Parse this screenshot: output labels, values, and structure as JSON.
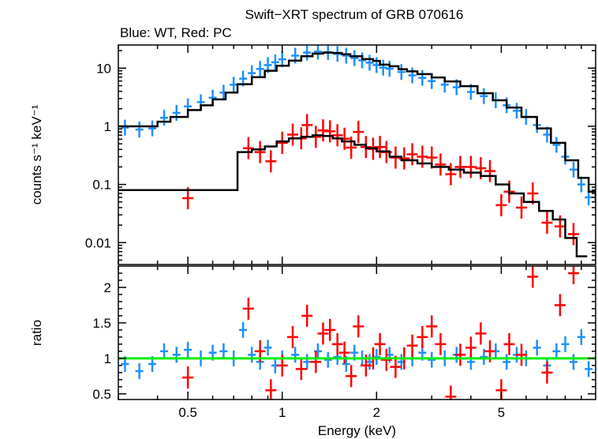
{
  "chart_data": [
    {
      "type": "scatter",
      "panel": "spectrum",
      "title": "Swift−XRT spectrum of GRB 070616",
      "subtitle": "Blue: WT, Red: PC",
      "xlabel": "",
      "ylabel": "counts s⁻¹ keV⁻¹",
      "xscale": "log",
      "yscale": "log",
      "xlim": [
        0.3,
        10
      ],
      "ylim": [
        0.0042,
        25
      ],
      "x_ticks": [
        0.5,
        1,
        2,
        5
      ],
      "y_ticks": [
        0.01,
        0.1,
        1,
        10
      ],
      "y_tick_labels": [
        "0.01",
        "0.1",
        "1",
        "10"
      ],
      "grid": false,
      "legend": "none",
      "series": [
        {
          "color": "#1e90ff",
          "style": "errorbar",
          "x": [
            0.315,
            0.35,
            0.385,
            0.42,
            0.46,
            0.5,
            0.55,
            0.6,
            0.65,
            0.7,
            0.75,
            0.8,
            0.85,
            0.9,
            0.95,
            1.0,
            1.1,
            1.2,
            1.3,
            1.4,
            1.5,
            1.6,
            1.7,
            1.8,
            1.9,
            2.0,
            2.1,
            2.2,
            2.4,
            2.6,
            2.8,
            3.0,
            3.3,
            3.6,
            4.0,
            4.4,
            4.8,
            5.2,
            5.6,
            6.0,
            6.5,
            7.0,
            7.5,
            8.0,
            8.5,
            9.0,
            9.5
          ],
          "y": [
            0.95,
            0.88,
            0.92,
            1.4,
            1.7,
            2.2,
            2.6,
            3.1,
            3.8,
            5.2,
            6.6,
            8.2,
            9.7,
            11.3,
            12.6,
            14.2,
            16.4,
            18.5,
            19.2,
            18.9,
            17.6,
            16.4,
            14.9,
            13.6,
            12.4,
            11.3,
            10.2,
            9.8,
            8.6,
            7.5,
            6.8,
            6.0,
            5.2,
            4.7,
            3.9,
            3.3,
            2.8,
            2.3,
            1.85,
            1.45,
            1.05,
            0.72,
            0.48,
            0.3,
            0.18,
            0.1,
            0.06
          ]
        },
        {
          "color": "#ff0000",
          "style": "errorbar",
          "x": [
            0.5,
            0.78,
            0.85,
            0.92,
            1.0,
            1.08,
            1.15,
            1.2,
            1.28,
            1.35,
            1.42,
            1.5,
            1.58,
            1.66,
            1.75,
            1.85,
            1.95,
            2.05,
            2.15,
            2.3,
            2.45,
            2.6,
            2.8,
            3.0,
            3.2,
            3.45,
            3.7,
            4.0,
            4.3,
            4.6,
            5.0,
            5.3,
            5.8,
            6.3,
            7.0,
            7.7,
            8.5
          ],
          "y": [
            0.058,
            0.42,
            0.36,
            0.25,
            0.52,
            0.72,
            0.62,
            1.05,
            0.66,
            0.85,
            0.82,
            0.7,
            0.61,
            0.43,
            0.8,
            0.44,
            0.41,
            0.44,
            0.36,
            0.29,
            0.28,
            0.33,
            0.3,
            0.29,
            0.22,
            0.15,
            0.2,
            0.2,
            0.19,
            0.17,
            0.044,
            0.075,
            0.04,
            0.07,
            0.022,
            0.019,
            0.014
          ]
        },
        {
          "color": "#000000",
          "style": "step",
          "x": [
            0.3,
            0.36,
            0.4,
            0.44,
            0.5,
            0.55,
            0.6,
            0.66,
            0.72,
            0.8,
            0.88,
            0.96,
            1.05,
            1.15,
            1.25,
            1.35,
            1.45,
            1.55,
            1.65,
            1.8,
            1.95,
            2.05,
            2.2,
            2.35,
            2.5,
            2.7,
            3.0,
            3.3,
            3.7,
            4.2,
            4.7,
            5.2,
            5.8,
            6.5,
            7.2,
            8.0,
            8.8,
            9.5,
            10.0
          ],
          "y": [
            1.0,
            1.0,
            1.2,
            1.45,
            1.9,
            2.3,
            2.9,
            3.8,
            5.3,
            7.0,
            9.0,
            11.0,
            13.5,
            16.0,
            17.8,
            18.5,
            18.2,
            17.3,
            16.0,
            14.3,
            13.3,
            11.5,
            10.8,
            9.6,
            8.8,
            7.9,
            6.9,
            5.9,
            4.9,
            3.7,
            2.8,
            2.1,
            1.45,
            0.92,
            0.52,
            0.26,
            0.13,
            0.075,
            0.05
          ]
        },
        {
          "color": "#000000",
          "style": "step",
          "x": [
            0.3,
            0.72,
            0.8,
            0.88,
            0.96,
            1.05,
            1.15,
            1.25,
            1.35,
            1.45,
            1.55,
            1.7,
            1.85,
            2.0,
            2.2,
            2.4,
            2.7,
            3.0,
            3.4,
            3.8,
            4.3,
            4.8,
            5.3,
            5.9,
            6.6,
            7.3,
            8.0,
            8.7,
            9.4
          ],
          "y": [
            0.08,
            0.36,
            0.4,
            0.45,
            0.55,
            0.62,
            0.66,
            0.7,
            0.68,
            0.62,
            0.55,
            0.48,
            0.42,
            0.37,
            0.3,
            0.26,
            0.23,
            0.2,
            0.18,
            0.16,
            0.14,
            0.1,
            0.07,
            0.05,
            0.035,
            0.025,
            0.012,
            0.0058,
            0.0058
          ]
        }
      ]
    },
    {
      "type": "scatter",
      "panel": "ratio",
      "title": "",
      "xlabel": "Energy (keV)",
      "ylabel": "ratio",
      "xscale": "log",
      "yscale": "linear",
      "xlim": [
        0.3,
        10
      ],
      "ylim": [
        0.42,
        2.3
      ],
      "x_ticks": [
        0.5,
        1,
        2,
        5
      ],
      "x_tick_labels": [
        "0.5",
        "1",
        "2",
        "5"
      ],
      "y_ticks": [
        0.5,
        1,
        1.5,
        2
      ],
      "y_tick_labels": [
        "0.5",
        "1",
        "1.5",
        "2"
      ],
      "grid": false,
      "legend": "none",
      "series": [
        {
          "color": "#1e90ff",
          "style": "errorbar",
          "x": [
            0.315,
            0.35,
            0.385,
            0.42,
            0.46,
            0.5,
            0.55,
            0.6,
            0.65,
            0.7,
            0.75,
            0.8,
            0.85,
            0.9,
            0.95,
            1.0,
            1.1,
            1.2,
            1.3,
            1.4,
            1.5,
            1.6,
            1.7,
            1.8,
            1.9,
            2.0,
            2.2,
            2.4,
            2.6,
            2.8,
            3.0,
            3.3,
            3.6,
            4.0,
            4.4,
            4.8,
            5.2,
            5.6,
            6.0,
            6.5,
            7.0,
            7.5,
            8.0,
            8.5,
            9.0,
            9.5
          ],
          "y": [
            0.92,
            0.82,
            0.92,
            1.1,
            1.05,
            1.12,
            1.0,
            1.08,
            1.1,
            1.0,
            1.4,
            1.05,
            0.95,
            1.15,
            0.9,
            1.0,
            1.05,
            0.95,
            1.1,
            0.98,
            1.02,
            0.92,
            1.08,
            1.0,
            0.95,
            1.02,
            1.05,
            0.95,
            1.0,
            1.08,
            0.98,
            1.0,
            1.05,
            0.95,
            1.02,
            1.1,
            0.95,
            1.05,
            1.0,
            1.15,
            0.9,
            1.1,
            1.2,
            0.95,
            1.3,
            0.85
          ]
        },
        {
          "color": "#ff0000",
          "style": "errorbar",
          "x": [
            0.5,
            0.78,
            0.85,
            0.92,
            1.0,
            1.08,
            1.15,
            1.2,
            1.28,
            1.35,
            1.42,
            1.5,
            1.58,
            1.66,
            1.75,
            1.85,
            1.95,
            2.05,
            2.15,
            2.3,
            2.45,
            2.6,
            2.8,
            3.0,
            3.2,
            3.45,
            3.7,
            4.0,
            4.3,
            4.6,
            5.0,
            5.3,
            5.8,
            6.3,
            7.0,
            7.7,
            8.5
          ],
          "y": [
            0.73,
            1.7,
            1.1,
            0.55,
            0.9,
            1.3,
            0.85,
            1.6,
            0.95,
            1.35,
            1.4,
            1.2,
            1.08,
            0.75,
            1.45,
            0.9,
            1.0,
            1.2,
            0.98,
            0.88,
            1.0,
            1.18,
            1.3,
            1.45,
            1.2,
            0.46,
            1.05,
            1.15,
            1.35,
            1.1,
            0.55,
            1.2,
            1.05,
            2.15,
            0.8,
            1.75,
            2.2
          ]
        },
        {
          "color": "#00ee00",
          "style": "line",
          "x": [
            0.3,
            10
          ],
          "y": [
            1,
            1
          ]
        }
      ]
    }
  ]
}
